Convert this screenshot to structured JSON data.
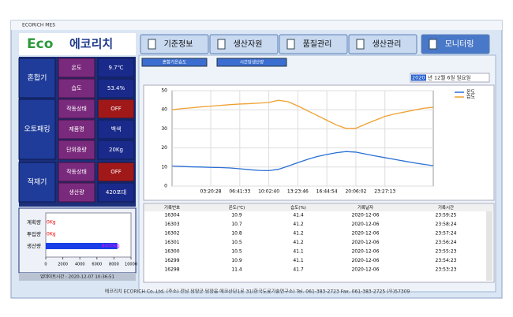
{
  "window": {
    "title": "ECORICH MES"
  },
  "logo": {
    "brand": "Eco",
    "name": "에코리치"
  },
  "nav": [
    "기준정보",
    "생산자원",
    "품질관리",
    "생산관리",
    "모니터링"
  ],
  "mixer": {
    "label": "혼합기",
    "rows": [
      [
        "온도",
        "9.7℃"
      ],
      [
        "습도",
        "53.4%"
      ]
    ]
  },
  "packer": {
    "label": "오토패킹",
    "rows": [
      [
        "작동상태",
        "OFF"
      ],
      [
        "제품명",
        "백색"
      ],
      [
        "단위중량",
        "20Kg"
      ]
    ]
  },
  "loader": {
    "label": "적재기",
    "rows": [
      [
        "작동상태",
        "OFF"
      ],
      [
        "생산량",
        "420포대"
      ]
    ]
  },
  "production_chart": {
    "type": "bar",
    "categories": [
      "계획량",
      "투입량",
      "생산량"
    ],
    "values": [
      0,
      0,
      8400
    ],
    "value_labels": [
      "0Kg",
      "0Kg",
      "8400Kg"
    ],
    "xlim": [
      0,
      10000
    ],
    "xticks": [
      0,
      2000,
      4000,
      6000,
      8000,
      10000
    ],
    "color": "#1a3fe8"
  },
  "updated": "업데이트시간 : 2020-12-07 10:36:51",
  "tabs": [
    "혼합기온습도",
    "시간당생산량"
  ],
  "date": {
    "year": "2020",
    "rest": "년 12월  6일 일요일"
  },
  "chart": {
    "type": "line",
    "categories": [
      null,
      null,
      null,
      null,
      "03:20:28",
      null,
      null,
      "06:41:33",
      null,
      null,
      "10:02:40",
      null,
      null,
      "13:23:46",
      null,
      null,
      "16:44:54",
      null,
      null,
      "20:06:02",
      null,
      null,
      "23:27:13",
      null,
      null,
      null,
      null,
      null
    ],
    "series": [
      {
        "name": "온도",
        "color": "#2a6fd6",
        "values": [
          10.5,
          10.3,
          10.1,
          10,
          9.8,
          9.7,
          9.5,
          9.1,
          8.6,
          8.2,
          8.1,
          8.8,
          10.5,
          12.3,
          14,
          15.5,
          16.6,
          17.5,
          18.1,
          17.8,
          16.8,
          15.8,
          14.9,
          14,
          13.1,
          12.2,
          11.4,
          10.7
        ]
      },
      {
        "name": "습도",
        "color": "#f0a030",
        "values": [
          40,
          40.6,
          41,
          41.5,
          41.9,
          42.3,
          42.7,
          43,
          43.2,
          43.5,
          43.8,
          45,
          44.2,
          42,
          39.5,
          37,
          34.5,
          32,
          30.2,
          30.3,
          32.5,
          34.5,
          36.5,
          37.8,
          38.8,
          39.8,
          40.8,
          41.3
        ]
      }
    ],
    "ylim": [
      0,
      50
    ],
    "yticks": [
      0,
      10,
      20,
      30,
      40,
      50
    ],
    "grid": true
  },
  "table": {
    "columns": [
      "기록번호",
      "온도(℃)",
      "습도(%)",
      "기록날자",
      "기록시간"
    ],
    "rows": [
      [
        "16304",
        "10.9",
        "41.4",
        "2020-12-06",
        "23:59:25"
      ],
      [
        "16303",
        "10.7",
        "41.2",
        "2020-12-06",
        "23:58:24"
      ],
      [
        "16302",
        "10.8",
        "41.2",
        "2020-12-06",
        "23:57:24"
      ],
      [
        "16301",
        "10.5",
        "41.2",
        "2020-12-06",
        "23:56:24"
      ],
      [
        "16300",
        "10.5",
        "41.1",
        "2020-12-06",
        "23:55:23"
      ],
      [
        "16299",
        "10.9",
        "41.1",
        "2020-12-06",
        "23:54:23"
      ],
      [
        "16298",
        "11.4",
        "41.7",
        "2020-12-06",
        "23:53:23"
      ]
    ]
  },
  "footer": "에코리치  ECORICH Co.,Ltd.   (주소) 전남 담양군 담양읍 에코산단1로 31(한국도료기술연구소)   Tel. 061-383-2723   Fax. 061-383-2725   (우)57309"
}
